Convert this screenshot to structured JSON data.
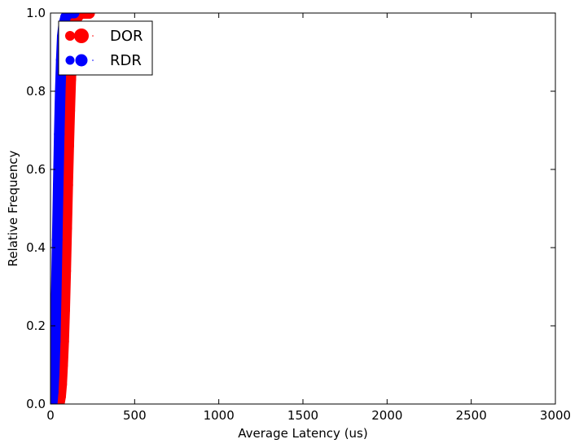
{
  "chart_data": {
    "type": "line",
    "xlabel": "Average Latency (us)",
    "ylabel": "Relative Frequency",
    "xlim": [
      0,
      3000
    ],
    "ylim": [
      0.0,
      1.0
    ],
    "x_ticks": [
      0,
      500,
      1000,
      1500,
      2000,
      2500,
      3000
    ],
    "y_ticks": [
      0.0,
      0.2,
      0.4,
      0.6,
      0.8,
      1.0
    ],
    "x_tick_labels": [
      "0",
      "500",
      "1000",
      "1500",
      "2000",
      "2500",
      "3000"
    ],
    "y_tick_labels": [
      "0.0",
      "0.2",
      "0.4",
      "0.6",
      "0.8",
      "1.0"
    ],
    "grid": false,
    "legend_position": "top-left",
    "series": [
      {
        "name": "DOR",
        "color": "#ff0000",
        "marker": "circle",
        "points": [
          [
            50,
            0.0
          ],
          [
            58,
            0.02
          ],
          [
            64,
            0.05
          ],
          [
            70,
            0.1
          ],
          [
            76,
            0.16
          ],
          [
            82,
            0.24
          ],
          [
            88,
            0.34
          ],
          [
            94,
            0.45
          ],
          [
            100,
            0.56
          ],
          [
            106,
            0.66
          ],
          [
            112,
            0.75
          ],
          [
            118,
            0.83
          ],
          [
            124,
            0.89
          ],
          [
            132,
            0.94
          ],
          [
            142,
            0.97
          ],
          [
            158,
            0.99
          ],
          [
            180,
            1.0
          ],
          [
            230,
            1.0
          ]
        ]
      },
      {
        "name": "RDR",
        "color": "#0000ff",
        "marker": "circle",
        "points": [
          [
            10,
            0.0
          ],
          [
            16,
            0.03
          ],
          [
            22,
            0.08
          ],
          [
            28,
            0.16
          ],
          [
            34,
            0.28
          ],
          [
            40,
            0.42
          ],
          [
            46,
            0.56
          ],
          [
            52,
            0.69
          ],
          [
            58,
            0.8
          ],
          [
            64,
            0.88
          ],
          [
            70,
            0.94
          ],
          [
            78,
            0.97
          ],
          [
            90,
            0.99
          ],
          [
            110,
            1.0
          ],
          [
            140,
            1.0
          ]
        ]
      }
    ]
  }
}
